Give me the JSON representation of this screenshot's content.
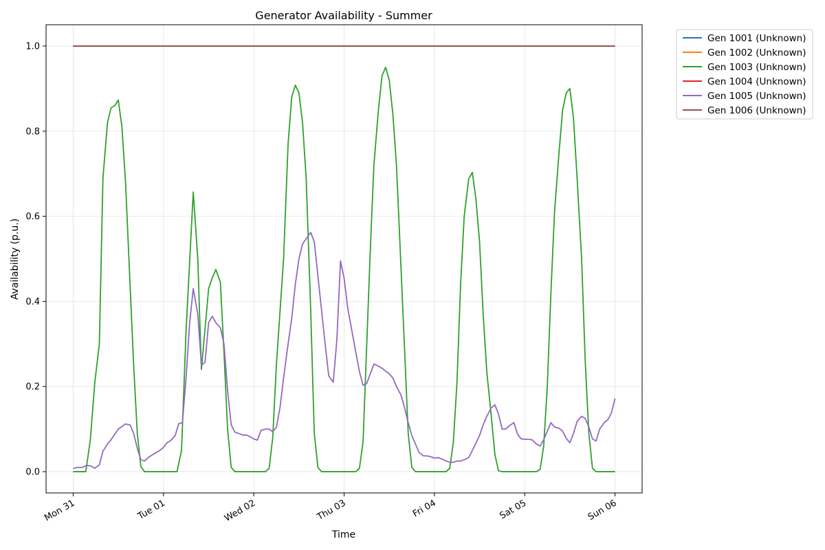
{
  "chart_data": {
    "type": "line",
    "title": "Generator Availability - Summer",
    "xlabel": "Time",
    "ylabel": "Availability (p.u.)",
    "xlim": [
      -0.3,
      6.3
    ],
    "ylim": [
      -0.05,
      1.05
    ],
    "grid": true,
    "legend_placement": "outside-top-right",
    "x_ticks": [
      {
        "x": 0,
        "label": "Mon 31"
      },
      {
        "x": 1,
        "label": "Tue 01"
      },
      {
        "x": 2,
        "label": "Wed 02"
      },
      {
        "x": 3,
        "label": "Thu 03"
      },
      {
        "x": 4,
        "label": "Fri 04"
      },
      {
        "x": 5,
        "label": "Sat 05"
      },
      {
        "x": 6,
        "label": "Sun 06"
      }
    ],
    "y_ticks": [
      {
        "y": 0.0,
        "label": "0.0"
      },
      {
        "y": 0.2,
        "label": "0.2"
      },
      {
        "y": 0.4,
        "label": "0.4"
      },
      {
        "y": 0.6,
        "label": "0.6"
      },
      {
        "y": 0.8,
        "label": "0.8"
      },
      {
        "y": 1.0,
        "label": "1.0"
      }
    ],
    "series": [
      {
        "name": "Gen 1001 (Unknown)",
        "color": "#1f77b4",
        "points": [
          [
            0,
            1.0
          ],
          [
            6,
            1.0
          ]
        ]
      },
      {
        "name": "Gen 1002 (Unknown)",
        "color": "#ff7f0e",
        "points": [
          [
            0,
            1.0
          ],
          [
            6,
            1.0
          ]
        ]
      },
      {
        "name": "Gen 1003 (Unknown)",
        "color": "#2ca02c",
        "points": [
          [
            0,
            0
          ],
          [
            0.14,
            0
          ],
          [
            0.19,
            0.075
          ],
          [
            0.24,
            0.21
          ],
          [
            0.29,
            0.3
          ],
          [
            0.33,
            0.69
          ],
          [
            0.38,
            0.82
          ],
          [
            0.42,
            0.855
          ],
          [
            0.46,
            0.86
          ],
          [
            0.5,
            0.873
          ],
          [
            0.54,
            0.81
          ],
          [
            0.58,
            0.68
          ],
          [
            0.63,
            0.44
          ],
          [
            0.67,
            0.25
          ],
          [
            0.71,
            0.09
          ],
          [
            0.75,
            0.012
          ],
          [
            0.79,
            0
          ],
          [
            1.15,
            0
          ],
          [
            1.2,
            0.05
          ],
          [
            1.25,
            0.33
          ],
          [
            1.33,
            0.657
          ],
          [
            1.38,
            0.5
          ],
          [
            1.42,
            0.24
          ],
          [
            1.5,
            0.43
          ],
          [
            1.54,
            0.455
          ],
          [
            1.58,
            0.475
          ],
          [
            1.63,
            0.445
          ],
          [
            1.67,
            0.28
          ],
          [
            1.71,
            0.1
          ],
          [
            1.75,
            0.01
          ],
          [
            1.79,
            0
          ],
          [
            2.13,
            0
          ],
          [
            2.17,
            0.008
          ],
          [
            2.21,
            0.08
          ],
          [
            2.25,
            0.25
          ],
          [
            2.33,
            0.5
          ],
          [
            2.38,
            0.77
          ],
          [
            2.42,
            0.88
          ],
          [
            2.46,
            0.908
          ],
          [
            2.5,
            0.89
          ],
          [
            2.54,
            0.82
          ],
          [
            2.58,
            0.69
          ],
          [
            2.63,
            0.38
          ],
          [
            2.67,
            0.09
          ],
          [
            2.71,
            0.01
          ],
          [
            2.75,
            0
          ],
          [
            3.13,
            0
          ],
          [
            3.17,
            0.008
          ],
          [
            3.21,
            0.07
          ],
          [
            3.29,
            0.52
          ],
          [
            3.33,
            0.72
          ],
          [
            3.38,
            0.85
          ],
          [
            3.42,
            0.93
          ],
          [
            3.46,
            0.95
          ],
          [
            3.5,
            0.92
          ],
          [
            3.54,
            0.84
          ],
          [
            3.58,
            0.72
          ],
          [
            3.63,
            0.48
          ],
          [
            3.71,
            0.09
          ],
          [
            3.75,
            0.01
          ],
          [
            3.79,
            0
          ],
          [
            4.13,
            0
          ],
          [
            4.17,
            0.008
          ],
          [
            4.21,
            0.07
          ],
          [
            4.25,
            0.21
          ],
          [
            4.29,
            0.44
          ],
          [
            4.33,
            0.6
          ],
          [
            4.38,
            0.688
          ],
          [
            4.42,
            0.703
          ],
          [
            4.46,
            0.64
          ],
          [
            4.5,
            0.54
          ],
          [
            4.54,
            0.37
          ],
          [
            4.58,
            0.235
          ],
          [
            4.63,
            0.13
          ],
          [
            4.67,
            0.04
          ],
          [
            4.71,
            0.002
          ],
          [
            4.75,
            0
          ],
          [
            5.13,
            0
          ],
          [
            5.17,
            0.005
          ],
          [
            5.21,
            0.06
          ],
          [
            5.25,
            0.2
          ],
          [
            5.29,
            0.42
          ],
          [
            5.33,
            0.61
          ],
          [
            5.38,
            0.75
          ],
          [
            5.42,
            0.85
          ],
          [
            5.46,
            0.89
          ],
          [
            5.5,
            0.9
          ],
          [
            5.54,
            0.83
          ],
          [
            5.58,
            0.69
          ],
          [
            5.63,
            0.5
          ],
          [
            5.67,
            0.26
          ],
          [
            5.71,
            0.09
          ],
          [
            5.75,
            0.008
          ],
          [
            5.79,
            0
          ],
          [
            6,
            0
          ]
        ]
      },
      {
        "name": "Gen 1004 (Unknown)",
        "color": "#d62728",
        "points": [
          [
            0,
            1.0
          ],
          [
            6,
            1.0
          ]
        ]
      },
      {
        "name": "Gen 1005 (Unknown)",
        "color": "#9467bd",
        "points": [
          [
            0,
            0.007
          ],
          [
            0.04,
            0.01
          ],
          [
            0.1,
            0.01
          ],
          [
            0.15,
            0.015
          ],
          [
            0.2,
            0.013
          ],
          [
            0.24,
            0.008
          ],
          [
            0.29,
            0.016
          ],
          [
            0.33,
            0.048
          ],
          [
            0.38,
            0.065
          ],
          [
            0.42,
            0.075
          ],
          [
            0.46,
            0.088
          ],
          [
            0.5,
            0.1
          ],
          [
            0.54,
            0.106
          ],
          [
            0.58,
            0.112
          ],
          [
            0.63,
            0.11
          ],
          [
            0.67,
            0.09
          ],
          [
            0.71,
            0.055
          ],
          [
            0.75,
            0.028
          ],
          [
            0.79,
            0.025
          ],
          [
            0.83,
            0.033
          ],
          [
            0.88,
            0.04
          ],
          [
            0.92,
            0.045
          ],
          [
            0.96,
            0.05
          ],
          [
            1.0,
            0.057
          ],
          [
            1.04,
            0.068
          ],
          [
            1.08,
            0.073
          ],
          [
            1.13,
            0.085
          ],
          [
            1.17,
            0.113
          ],
          [
            1.21,
            0.115
          ],
          [
            1.25,
            0.22
          ],
          [
            1.29,
            0.35
          ],
          [
            1.33,
            0.43
          ],
          [
            1.38,
            0.37
          ],
          [
            1.42,
            0.25
          ],
          [
            1.46,
            0.257
          ],
          [
            1.5,
            0.35
          ],
          [
            1.54,
            0.365
          ],
          [
            1.58,
            0.35
          ],
          [
            1.63,
            0.338
          ],
          [
            1.67,
            0.3
          ],
          [
            1.71,
            0.19
          ],
          [
            1.75,
            0.11
          ],
          [
            1.79,
            0.093
          ],
          [
            1.83,
            0.09
          ],
          [
            1.88,
            0.086
          ],
          [
            1.92,
            0.086
          ],
          [
            1.96,
            0.082
          ],
          [
            2.0,
            0.077
          ],
          [
            2.04,
            0.074
          ],
          [
            2.08,
            0.097
          ],
          [
            2.13,
            0.1
          ],
          [
            2.17,
            0.1
          ],
          [
            2.21,
            0.094
          ],
          [
            2.25,
            0.104
          ],
          [
            2.29,
            0.15
          ],
          [
            2.33,
            0.22
          ],
          [
            2.38,
            0.3
          ],
          [
            2.42,
            0.36
          ],
          [
            2.46,
            0.44
          ],
          [
            2.5,
            0.5
          ],
          [
            2.54,
            0.535
          ],
          [
            2.58,
            0.547
          ],
          [
            2.63,
            0.562
          ],
          [
            2.67,
            0.54
          ],
          [
            2.71,
            0.46
          ],
          [
            2.75,
            0.38
          ],
          [
            2.79,
            0.3
          ],
          [
            2.83,
            0.225
          ],
          [
            2.88,
            0.21
          ],
          [
            2.92,
            0.31
          ],
          [
            2.96,
            0.495
          ],
          [
            3.0,
            0.455
          ],
          [
            3.04,
            0.385
          ],
          [
            3.08,
            0.338
          ],
          [
            3.13,
            0.28
          ],
          [
            3.17,
            0.235
          ],
          [
            3.21,
            0.203
          ],
          [
            3.25,
            0.207
          ],
          [
            3.29,
            0.23
          ],
          [
            3.33,
            0.253
          ],
          [
            3.38,
            0.248
          ],
          [
            3.42,
            0.243
          ],
          [
            3.46,
            0.236
          ],
          [
            3.5,
            0.23
          ],
          [
            3.54,
            0.22
          ],
          [
            3.58,
            0.2
          ],
          [
            3.63,
            0.18
          ],
          [
            3.67,
            0.15
          ],
          [
            3.71,
            0.115
          ],
          [
            3.75,
            0.085
          ],
          [
            3.79,
            0.065
          ],
          [
            3.83,
            0.045
          ],
          [
            3.88,
            0.037
          ],
          [
            3.92,
            0.037
          ],
          [
            3.96,
            0.035
          ],
          [
            4.0,
            0.032
          ],
          [
            4.04,
            0.033
          ],
          [
            4.08,
            0.03
          ],
          [
            4.13,
            0.025
          ],
          [
            4.17,
            0.022
          ],
          [
            4.21,
            0.022
          ],
          [
            4.25,
            0.025
          ],
          [
            4.29,
            0.025
          ],
          [
            4.33,
            0.028
          ],
          [
            4.38,
            0.033
          ],
          [
            4.42,
            0.05
          ],
          [
            4.46,
            0.067
          ],
          [
            4.5,
            0.085
          ],
          [
            4.54,
            0.11
          ],
          [
            4.58,
            0.13
          ],
          [
            4.63,
            0.15
          ],
          [
            4.67,
            0.157
          ],
          [
            4.71,
            0.135
          ],
          [
            4.75,
            0.1
          ],
          [
            4.79,
            0.1
          ],
          [
            4.83,
            0.108
          ],
          [
            4.88,
            0.115
          ],
          [
            4.92,
            0.088
          ],
          [
            4.96,
            0.077
          ],
          [
            5.0,
            0.076
          ],
          [
            5.04,
            0.076
          ],
          [
            5.08,
            0.075
          ],
          [
            5.13,
            0.065
          ],
          [
            5.17,
            0.06
          ],
          [
            5.21,
            0.075
          ],
          [
            5.25,
            0.095
          ],
          [
            5.29,
            0.115
          ],
          [
            5.33,
            0.105
          ],
          [
            5.38,
            0.102
          ],
          [
            5.42,
            0.095
          ],
          [
            5.46,
            0.078
          ],
          [
            5.5,
            0.068
          ],
          [
            5.54,
            0.09
          ],
          [
            5.58,
            0.118
          ],
          [
            5.63,
            0.13
          ],
          [
            5.67,
            0.125
          ],
          [
            5.71,
            0.105
          ],
          [
            5.75,
            0.077
          ],
          [
            5.79,
            0.072
          ],
          [
            5.83,
            0.1
          ],
          [
            5.88,
            0.115
          ],
          [
            5.92,
            0.122
          ],
          [
            5.96,
            0.138
          ],
          [
            6.0,
            0.172
          ]
        ]
      },
      {
        "name": "Gen 1006 (Unknown)",
        "color": "#8c564b",
        "points": [
          [
            0,
            1.0
          ],
          [
            6,
            1.0
          ]
        ]
      }
    ]
  }
}
